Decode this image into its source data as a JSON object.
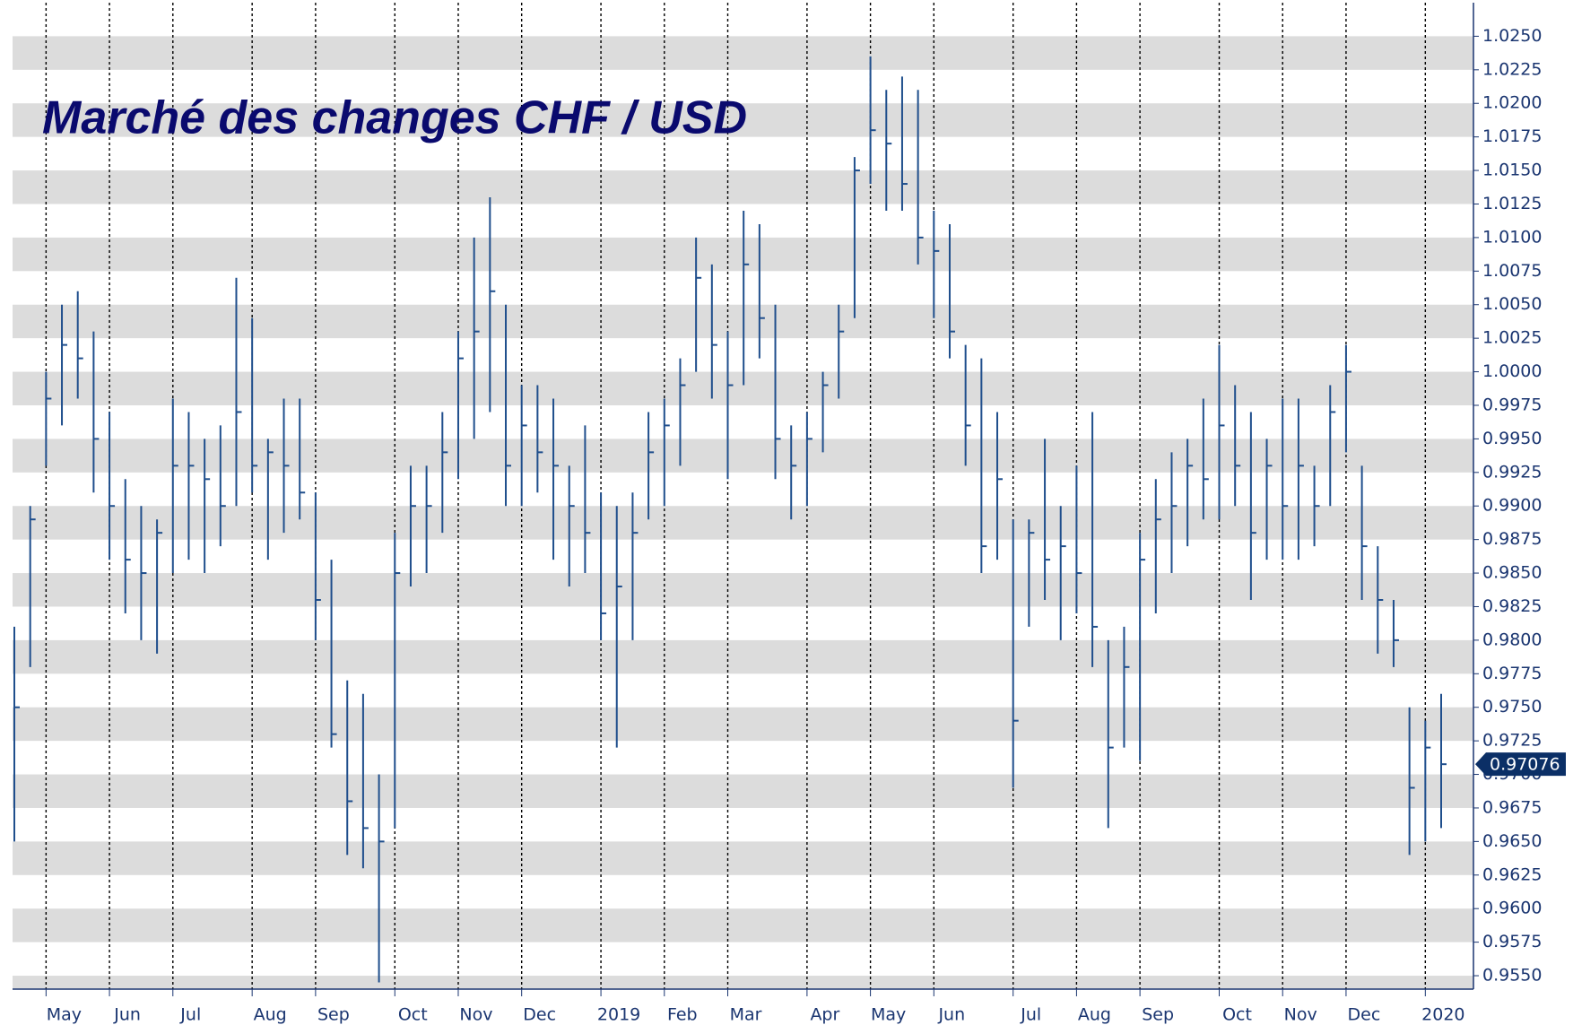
{
  "chart_data": {
    "type": "ohlc",
    "title": "Marché des changes CHF / USD",
    "categories": [
      null,
      null,
      "May",
      null,
      null,
      null,
      "Jun",
      null,
      null,
      null,
      "Jul",
      null,
      null,
      null,
      null,
      "Aug",
      null,
      null,
      null,
      "Sep",
      null,
      null,
      null,
      null,
      "Oct",
      null,
      null,
      null,
      "Nov",
      null,
      null,
      null,
      "Dec",
      null,
      null,
      null,
      null,
      "2019",
      null,
      null,
      null,
      "Feb",
      null,
      null,
      null,
      "Mar",
      null,
      null,
      null,
      null,
      "Apr",
      null,
      null,
      null,
      "May",
      null,
      null,
      null,
      "Jun",
      null,
      null,
      null,
      null,
      "Jul",
      null,
      null,
      null,
      "Aug",
      null,
      null,
      null,
      "Sep",
      null,
      null,
      null,
      null,
      "Oct",
      null,
      null,
      null,
      "Nov",
      null,
      null,
      null,
      "Dec",
      null,
      null,
      null,
      null,
      "2020",
      null
    ],
    "series": [
      {
        "color": "#1f4e8c",
        "high": [
          0.981,
          0.99,
          1.0,
          1.005,
          1.006,
          1.003,
          0.997,
          0.992,
          0.99,
          0.989,
          0.998,
          0.997,
          0.995,
          0.996,
          1.007,
          1.004,
          0.995,
          0.998,
          0.998,
          0.991,
          0.986,
          0.977,
          0.976,
          0.97,
          0.988,
          0.993,
          0.993,
          0.997,
          1.003,
          1.01,
          1.013,
          1.005,
          0.999,
          0.999,
          0.998,
          0.993,
          0.996,
          0.991,
          0.99,
          0.991,
          0.997,
          0.998,
          1.001,
          1.01,
          1.008,
          1.003,
          1.012,
          1.011,
          1.005,
          0.996,
          0.997,
          1.0,
          1.005,
          1.016,
          1.0235,
          1.021,
          1.022,
          1.021,
          1.012,
          1.011,
          1.002,
          1.001,
          0.997,
          0.989,
          0.989,
          0.995,
          0.99,
          0.993,
          0.997,
          0.98,
          0.981,
          0.988,
          0.992,
          0.994,
          0.995,
          0.998,
          1.002,
          0.999,
          0.997,
          0.995,
          0.998,
          0.998,
          0.993,
          0.999,
          1.002,
          0.993,
          0.987,
          0.983,
          0.975,
          0.974,
          0.976
        ],
        "low": [
          0.965,
          0.978,
          0.993,
          0.996,
          0.998,
          0.991,
          0.986,
          0.982,
          0.98,
          0.979,
          0.985,
          0.986,
          0.985,
          0.987,
          0.99,
          0.991,
          0.986,
          0.988,
          0.989,
          0.98,
          0.972,
          0.964,
          0.963,
          0.9545,
          0.966,
          0.984,
          0.985,
          0.988,
          0.992,
          0.995,
          0.997,
          0.99,
          0.99,
          0.991,
          0.986,
          0.984,
          0.985,
          0.98,
          0.972,
          0.98,
          0.989,
          0.99,
          0.993,
          1.0,
          0.998,
          0.992,
          0.999,
          1.001,
          0.992,
          0.989,
          0.99,
          0.994,
          0.998,
          1.004,
          1.014,
          1.012,
          1.012,
          1.008,
          1.004,
          1.001,
          0.993,
          0.985,
          0.986,
          0.969,
          0.981,
          0.983,
          0.98,
          0.982,
          0.978,
          0.966,
          0.972,
          0.971,
          0.982,
          0.985,
          0.987,
          0.989,
          0.989,
          0.99,
          0.983,
          0.986,
          0.986,
          0.986,
          0.987,
          0.99,
          0.994,
          0.983,
          0.979,
          0.978,
          0.964,
          0.965,
          0.966
        ],
        "close": [
          0.975,
          0.989,
          0.998,
          1.002,
          1.001,
          0.995,
          0.99,
          0.986,
          0.985,
          0.988,
          0.993,
          0.993,
          0.992,
          0.99,
          0.997,
          0.993,
          0.994,
          0.993,
          0.991,
          0.983,
          0.973,
          0.968,
          0.966,
          0.965,
          0.985,
          0.99,
          0.99,
          0.994,
          1.001,
          1.003,
          1.006,
          0.993,
          0.996,
          0.994,
          0.993,
          0.99,
          0.988,
          0.982,
          0.984,
          0.988,
          0.994,
          0.996,
          0.999,
          1.007,
          1.002,
          0.999,
          1.008,
          1.004,
          0.995,
          0.993,
          0.995,
          0.999,
          1.003,
          1.015,
          1.018,
          1.017,
          1.014,
          1.01,
          1.009,
          1.003,
          0.996,
          0.987,
          0.992,
          0.974,
          0.988,
          0.986,
          0.987,
          0.985,
          0.981,
          0.972,
          0.978,
          0.986,
          0.989,
          0.99,
          0.993,
          0.992,
          0.996,
          0.993,
          0.988,
          0.993,
          0.99,
          0.993,
          0.99,
          0.997,
          1.0,
          0.987,
          0.983,
          0.98,
          0.969,
          0.972,
          0.97076
        ]
      }
    ],
    "last_price": 0.97076,
    "ylim": [
      0.954,
      1.0275
    ],
    "yticks": [
      {
        "value": 0.955,
        "label": "0.9550"
      },
      {
        "value": 0.9575,
        "label": "0.9575"
      },
      {
        "value": 0.96,
        "label": "0.9600"
      },
      {
        "value": 0.9625,
        "label": "0.9625"
      },
      {
        "value": 0.965,
        "label": "0.9650"
      },
      {
        "value": 0.9675,
        "label": "0.9675"
      },
      {
        "value": 0.97,
        "label": "0.9700"
      },
      {
        "value": 0.9725,
        "label": "0.9725"
      },
      {
        "value": 0.975,
        "label": "0.9750"
      },
      {
        "value": 0.9775,
        "label": "0.9775"
      },
      {
        "value": 0.98,
        "label": "0.9800"
      },
      {
        "value": 0.9825,
        "label": "0.9825"
      },
      {
        "value": 0.985,
        "label": "0.9850"
      },
      {
        "value": 0.9875,
        "label": "0.9875"
      },
      {
        "value": 0.99,
        "label": "0.9900"
      },
      {
        "value": 0.9925,
        "label": "0.9925"
      },
      {
        "value": 0.995,
        "label": "0.9950"
      },
      {
        "value": 0.9975,
        "label": "0.9975"
      },
      {
        "value": 1.0,
        "label": "1.0000"
      },
      {
        "value": 1.0025,
        "label": "1.0025"
      },
      {
        "value": 1.005,
        "label": "1.0050"
      },
      {
        "value": 1.0075,
        "label": "1.0075"
      },
      {
        "value": 1.01,
        "label": "1.0100"
      },
      {
        "value": 1.0125,
        "label": "1.0125"
      },
      {
        "value": 1.015,
        "label": "1.0150"
      },
      {
        "value": 1.0175,
        "label": "1.0175"
      },
      {
        "value": 1.02,
        "label": "1.0200"
      },
      {
        "value": 1.0225,
        "label": "1.0225"
      },
      {
        "value": 1.025,
        "label": "1.0250"
      }
    ],
    "grid": "bands"
  }
}
